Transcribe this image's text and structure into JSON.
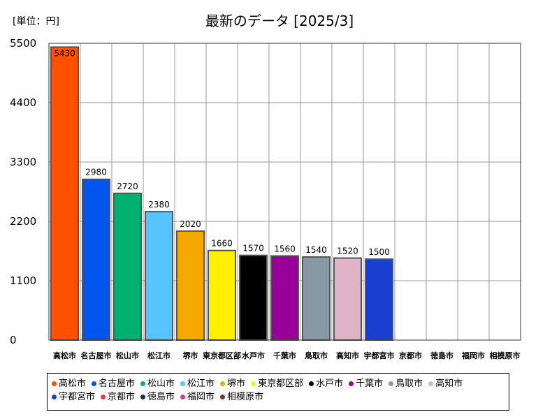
{
  "unit_label": "[単位：円]",
  "title": "最新のデータ [2025/3]",
  "chart_data": {
    "type": "bar",
    "title": "最新のデータ [2025/3]",
    "unit": "[単位：円]",
    "categories": [
      "高松市",
      "名古屋市",
      "松山市",
      "松江市",
      "堺市",
      "東京都区部",
      "水戸市",
      "千葉市",
      "鳥取市",
      "高知市",
      "宇都宮市",
      "京都市",
      "徳島市",
      "福岡市",
      "相模原市"
    ],
    "values": [
      5430,
      2980,
      2720,
      2380,
      2020,
      1660,
      1570,
      1560,
      1540,
      1520,
      1500,
      0,
      0,
      0,
      0
    ],
    "value_labels": [
      "5430",
      "2980",
      "2720",
      "2380",
      "2020",
      "1660",
      "1570",
      "1560",
      "1540",
      "1520",
      "1500",
      "",
      "",
      "",
      ""
    ],
    "colors": [
      "#ff5000",
      "#0055ee",
      "#00b070",
      "#55c4ff",
      "#f5a800",
      "#fff000",
      "#000000",
      "#990099",
      "#8899a6",
      "#e0b4c8",
      "#1a3fd0",
      "#e83a3a",
      "#003355",
      "#d63a8a",
      "#6b3a2a"
    ],
    "ylim": [
      0,
      5500
    ],
    "yticks": [
      0,
      1100,
      2200,
      3300,
      4400,
      5500
    ],
    "ytick_labels": [
      "0",
      "1100",
      "2200",
      "3300",
      "4400",
      "5500"
    ],
    "grid": true,
    "legend_position": "bottom"
  }
}
